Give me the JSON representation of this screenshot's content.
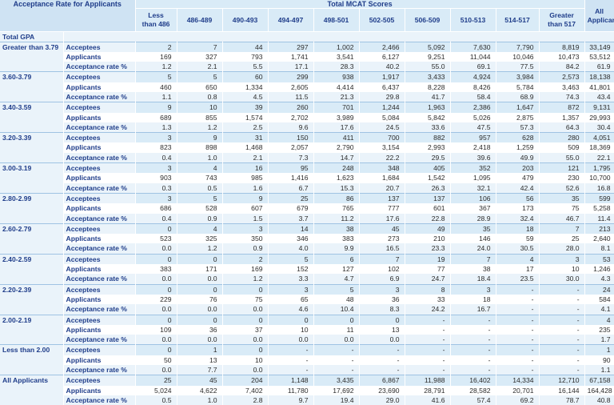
{
  "table": {
    "corner_label": "Acceptance Rate for Applicants",
    "group_label": "Total MCAT Scores",
    "columns": [
      [
        "Less",
        "than 486"
      ],
      [
        "486-489"
      ],
      [
        "490-493"
      ],
      [
        "494-497"
      ],
      [
        "498-501"
      ],
      [
        "502-505"
      ],
      [
        "506-509"
      ],
      [
        "510-513"
      ],
      [
        "514-517"
      ],
      [
        "Greater",
        "than 517"
      ]
    ],
    "all_column": [
      "All",
      "Applicants"
    ],
    "total_gpa_label": "Total GPA",
    "groups": [
      {
        "gpa": "Greater than 3.79",
        "rows": [
          {
            "type": "Acceptees",
            "values": [
              "2",
              "7",
              "44",
              "297",
              "1,002",
              "2,466",
              "5,092",
              "7,630",
              "7,790",
              "8,819",
              "33,149"
            ]
          },
          {
            "type": "Applicants",
            "values": [
              "169",
              "327",
              "793",
              "1,741",
              "3,541",
              "6,127",
              "9,251",
              "11,044",
              "10,046",
              "10,473",
              "53,512"
            ]
          },
          {
            "type": "Acceptance rate %",
            "values": [
              "1.2",
              "2.1",
              "5.5",
              "17.1",
              "28.3",
              "40.2",
              "55.0",
              "69.1",
              "77.5",
              "84.2",
              "61.9"
            ]
          }
        ]
      },
      {
        "gpa": "3.60-3.79",
        "rows": [
          {
            "type": "Acceptees",
            "values": [
              "5",
              "5",
              "60",
              "299",
              "938",
              "1,917",
              "3,433",
              "4,924",
              "3,984",
              "2,573",
              "18,138"
            ]
          },
          {
            "type": "Applicants",
            "values": [
              "460",
              "650",
              "1,334",
              "2,605",
              "4,414",
              "6,437",
              "8,228",
              "8,426",
              "5,784",
              "3,463",
              "41,801"
            ]
          },
          {
            "type": "Acceptance rate %",
            "values": [
              "1.1",
              "0.8",
              "4.5",
              "11.5",
              "21.3",
              "29.8",
              "41.7",
              "58.4",
              "68.9",
              "74.3",
              "43.4"
            ]
          }
        ]
      },
      {
        "gpa": "3.40-3.59",
        "rows": [
          {
            "type": "Acceptees",
            "values": [
              "9",
              "10",
              "39",
              "260",
              "701",
              "1,244",
              "1,963",
              "2,386",
              "1,647",
              "872",
              "9,131"
            ]
          },
          {
            "type": "Applicants",
            "values": [
              "689",
              "855",
              "1,574",
              "2,702",
              "3,989",
              "5,084",
              "5,842",
              "5,026",
              "2,875",
              "1,357",
              "29,993"
            ]
          },
          {
            "type": "Acceptance rate %",
            "values": [
              "1.3",
              "1.2",
              "2.5",
              "9.6",
              "17.6",
              "24.5",
              "33.6",
              "47.5",
              "57.3",
              "64.3",
              "30.4"
            ]
          }
        ]
      },
      {
        "gpa": "3.20-3.39",
        "rows": [
          {
            "type": "Acceptees",
            "values": [
              "3",
              "9",
              "31",
              "150",
              "411",
              "700",
              "882",
              "957",
              "628",
              "280",
              "4,051"
            ]
          },
          {
            "type": "Applicants",
            "values": [
              "823",
              "898",
              "1,468",
              "2,057",
              "2,790",
              "3,154",
              "2,993",
              "2,418",
              "1,259",
              "509",
              "18,369"
            ]
          },
          {
            "type": "Acceptance rate %",
            "values": [
              "0.4",
              "1.0",
              "2.1",
              "7.3",
              "14.7",
              "22.2",
              "29.5",
              "39.6",
              "49.9",
              "55.0",
              "22.1"
            ]
          }
        ]
      },
      {
        "gpa": "3.00-3.19",
        "rows": [
          {
            "type": "Acceptees",
            "values": [
              "3",
              "4",
              "16",
              "95",
              "248",
              "348",
              "405",
              "352",
              "203",
              "121",
              "1,795"
            ]
          },
          {
            "type": "Applicants",
            "values": [
              "903",
              "743",
              "985",
              "1,416",
              "1,623",
              "1,684",
              "1,542",
              "1,095",
              "479",
              "230",
              "10,700"
            ]
          },
          {
            "type": "Acceptance rate %",
            "values": [
              "0.3",
              "0.5",
              "1.6",
              "6.7",
              "15.3",
              "20.7",
              "26.3",
              "32.1",
              "42.4",
              "52.6",
              "16.8"
            ]
          }
        ]
      },
      {
        "gpa": "2.80-2.99",
        "rows": [
          {
            "type": "Acceptees",
            "values": [
              "3",
              "5",
              "9",
              "25",
              "86",
              "137",
              "137",
              "106",
              "56",
              "35",
              "599"
            ]
          },
          {
            "type": "Applicants",
            "values": [
              "686",
              "528",
              "607",
              "679",
              "765",
              "777",
              "601",
              "367",
              "173",
              "75",
              "5,258"
            ]
          },
          {
            "type": "Acceptance rate %",
            "values": [
              "0.4",
              "0.9",
              "1.5",
              "3.7",
              "11.2",
              "17.6",
              "22.8",
              "28.9",
              "32.4",
              "46.7",
              "11.4"
            ]
          }
        ]
      },
      {
        "gpa": "2.60-2.79",
        "rows": [
          {
            "type": "Acceptees",
            "values": [
              "0",
              "4",
              "3",
              "14",
              "38",
              "45",
              "49",
              "35",
              "18",
              "7",
              "213"
            ]
          },
          {
            "type": "Applicants",
            "values": [
              "523",
              "325",
              "350",
              "346",
              "383",
              "273",
              "210",
              "146",
              "59",
              "25",
              "2,640"
            ]
          },
          {
            "type": "Acceptance rate %",
            "values": [
              "0.0",
              "1.2",
              "0.9",
              "4.0",
              "9.9",
              "16.5",
              "23.3",
              "24.0",
              "30.5",
              "28.0",
              "8.1"
            ]
          }
        ]
      },
      {
        "gpa": "2.40-2.59",
        "rows": [
          {
            "type": "Acceptees",
            "values": [
              "0",
              "0",
              "2",
              "5",
              "6",
              "7",
              "19",
              "7",
              "4",
              "3",
              "53"
            ]
          },
          {
            "type": "Applicants",
            "values": [
              "383",
              "171",
              "169",
              "152",
              "127",
              "102",
              "77",
              "38",
              "17",
              "10",
              "1,246"
            ]
          },
          {
            "type": "Acceptance rate %",
            "values": [
              "0.0",
              "0.0",
              "1.2",
              "3.3",
              "4.7",
              "6.9",
              "24.7",
              "18.4",
              "23.5",
              "30.0",
              "4.3"
            ]
          }
        ]
      },
      {
        "gpa": "2.20-2.39",
        "rows": [
          {
            "type": "Acceptees",
            "values": [
              "0",
              "0",
              "0",
              "3",
              "5",
              "3",
              "8",
              "3",
              "-",
              "-",
              "24"
            ]
          },
          {
            "type": "Applicants",
            "values": [
              "229",
              "76",
              "75",
              "65",
              "48",
              "36",
              "33",
              "18",
              "-",
              "-",
              "584"
            ]
          },
          {
            "type": "Acceptance rate %",
            "values": [
              "0.0",
              "0.0",
              "0.0",
              "4.6",
              "10.4",
              "8.3",
              "24.2",
              "16.7",
              "-",
              "-",
              "4.1"
            ]
          }
        ]
      },
      {
        "gpa": "2.00-2.19",
        "rows": [
          {
            "type": "Acceptees",
            "values": [
              "0",
              "0",
              "0",
              "0",
              "0",
              "0",
              "-",
              "-",
              "-",
              "-",
              "4"
            ]
          },
          {
            "type": "Applicants",
            "values": [
              "109",
              "36",
              "37",
              "10",
              "11",
              "13",
              "-",
              "-",
              "-",
              "-",
              "235"
            ]
          },
          {
            "type": "Acceptance rate %",
            "values": [
              "0.0",
              "0.0",
              "0.0",
              "0.0",
              "0.0",
              "0.0",
              "-",
              "-",
              "-",
              "-",
              "1.7"
            ]
          }
        ]
      },
      {
        "gpa": "Less than 2.00",
        "rows": [
          {
            "type": "Acceptees",
            "values": [
              "0",
              "1",
              "0",
              "-",
              "-",
              "-",
              "-",
              "-",
              "-",
              "-",
              "1"
            ]
          },
          {
            "type": "Applicants",
            "values": [
              "50",
              "13",
              "10",
              "-",
              "-",
              "-",
              "-",
              "-",
              "-",
              "-",
              "90"
            ]
          },
          {
            "type": "Acceptance rate %",
            "values": [
              "0.0",
              "7.7",
              "0.0",
              "-",
              "-",
              "-",
              "-",
              "-",
              "-",
              "-",
              "1.1"
            ]
          }
        ]
      },
      {
        "gpa": "All Applicants",
        "rows": [
          {
            "type": "Acceptees",
            "values": [
              "25",
              "45",
              "204",
              "1,148",
              "3,435",
              "6,867",
              "11,988",
              "16,402",
              "14,334",
              "12,710",
              "67,158"
            ]
          },
          {
            "type": "Applicants",
            "values": [
              "5,024",
              "4,622",
              "7,402",
              "11,780",
              "17,692",
              "23,690",
              "28,791",
              "28,582",
              "20,701",
              "16,144",
              "164,428"
            ]
          },
          {
            "type": "Acceptance rate %",
            "values": [
              "0.5",
              "1.0",
              "2.8",
              "9.7",
              "19.4",
              "29.0",
              "41.6",
              "57.4",
              "69.2",
              "78.7",
              "40.8"
            ]
          }
        ]
      }
    ]
  }
}
